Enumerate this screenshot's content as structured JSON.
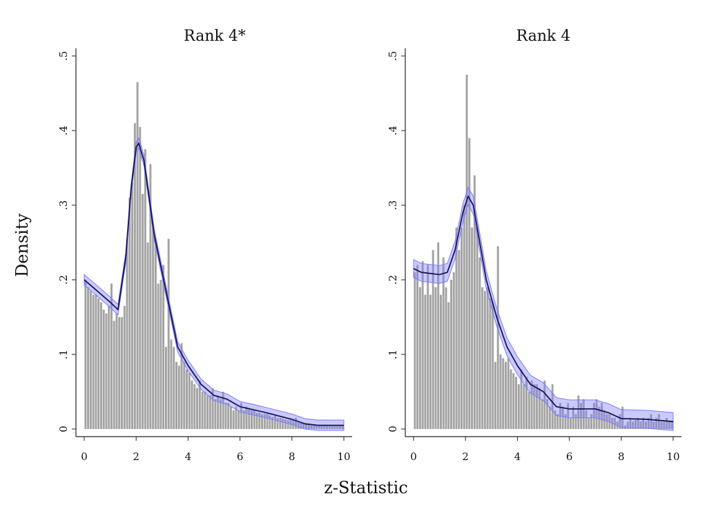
{
  "chart_data": {
    "type": "bar",
    "ylabel": "Density",
    "xlabel": "z-Statistic",
    "colors": {
      "bars": "#a3a3a3",
      "curve": "#1a1550",
      "band": "#7b7bff"
    },
    "xticks": [
      "0",
      "2",
      "4",
      "6",
      "8",
      "10"
    ],
    "xtick_values": [
      0,
      2,
      4,
      6,
      8,
      10
    ],
    "yticks": [
      "0",
      ".1",
      ".2",
      ".3",
      ".4",
      ".5"
    ],
    "ytick_values": [
      0,
      0.1,
      0.2,
      0.3,
      0.4,
      0.5
    ],
    "xlim": [
      0,
      10
    ],
    "ylim": [
      0,
      0.5
    ],
    "bin_width": 0.1,
    "panels": [
      {
        "title": "Rank 4*",
        "histogram": [
          0.2,
          0.19,
          0.185,
          0.18,
          0.18,
          0.175,
          0.17,
          0.16,
          0.155,
          0.165,
          0.195,
          0.145,
          0.155,
          0.15,
          0.15,
          0.165,
          0.255,
          0.31,
          0.33,
          0.41,
          0.465,
          0.405,
          0.315,
          0.375,
          0.25,
          0.355,
          0.275,
          0.255,
          0.195,
          0.2,
          0.22,
          0.11,
          0.255,
          0.12,
          0.11,
          0.09,
          0.085,
          0.115,
          0.09,
          0.08,
          0.075,
          0.065,
          0.06,
          0.055,
          0.065,
          0.05,
          0.05,
          0.045,
          0.045,
          0.055,
          0.04,
          0.045,
          0.04,
          0.05,
          0.035,
          0.035,
          0.03,
          0.025,
          0.03,
          0.025,
          0.035,
          0.025,
          0.03,
          0.028,
          0.025,
          0.025,
          0.022,
          0.022,
          0.02,
          0.02,
          0.02,
          0.018,
          0.016,
          0.018,
          0.015,
          0.015,
          0.014,
          0.013,
          0.012,
          0.012,
          0.012,
          0.015,
          0.01,
          0.008,
          0.008,
          0.006,
          0.006,
          0.005,
          0.006,
          0.005,
          0.005,
          0.005,
          0.006,
          0.005,
          0.005,
          0.005,
          0.005,
          0.004,
          0.005,
          0.005
        ],
        "density_curve": {
          "x": [
            0,
            0.5,
            1,
            1.3,
            1.6,
            1.8,
            2.0,
            2.1,
            2.3,
            2.5,
            2.7,
            3.0,
            3.3,
            3.6,
            4.0,
            4.5,
            5.0,
            5.5,
            6.0,
            7.0,
            8.0,
            8.5,
            9.0,
            10.0
          ],
          "y": [
            0.2,
            0.185,
            0.17,
            0.16,
            0.23,
            0.32,
            0.378,
            0.383,
            0.36,
            0.31,
            0.26,
            0.21,
            0.16,
            0.11,
            0.085,
            0.06,
            0.045,
            0.04,
            0.03,
            0.022,
            0.013,
            0.007,
            0.005,
            0.005
          ],
          "ci_halfwidth": 0.007
        }
      },
      {
        "title": "Rank 4",
        "histogram": [
          0.21,
          0.22,
          0.19,
          0.225,
          0.18,
          0.22,
          0.18,
          0.24,
          0.19,
          0.25,
          0.18,
          0.23,
          0.19,
          0.17,
          0.2,
          0.21,
          0.27,
          0.24,
          0.27,
          0.3,
          0.475,
          0.39,
          0.27,
          0.34,
          0.27,
          0.23,
          0.19,
          0.185,
          0.19,
          0.175,
          0.17,
          0.09,
          0.245,
          0.1,
          0.095,
          0.09,
          0.095,
          0.08,
          0.075,
          0.07,
          0.06,
          0.08,
          0.06,
          0.07,
          0.05,
          0.065,
          0.06,
          0.06,
          0.055,
          0.04,
          0.065,
          0.04,
          0.03,
          0.06,
          0.025,
          0.02,
          0.035,
          0.03,
          0.02,
          0.035,
          0.015,
          0.03,
          0.02,
          0.045,
          0.035,
          0.04,
          0.025,
          0.015,
          0.02,
          0.035,
          0.04,
          0.03,
          0.035,
          0.025,
          0.02,
          0.02,
          0.015,
          0.015,
          0.01,
          0.02,
          0.03,
          0.005,
          0.01,
          0.015,
          0.01,
          0.012,
          0.015,
          0.01,
          0.015,
          0.01,
          0.015,
          0.02,
          0.01,
          0.015,
          0.02,
          0.01,
          0.01,
          0.015,
          0.01,
          0.01
        ],
        "density_curve": {
          "x": [
            0,
            0.3,
            1.0,
            1.3,
            1.6,
            1.9,
            2.1,
            2.3,
            2.5,
            2.8,
            3.2,
            3.6,
            4.0,
            4.5,
            5.0,
            5.5,
            6.0,
            7.0,
            7.5,
            8.0,
            9.0,
            10.0
          ],
          "y": [
            0.215,
            0.21,
            0.207,
            0.21,
            0.24,
            0.29,
            0.312,
            0.3,
            0.26,
            0.2,
            0.15,
            0.11,
            0.085,
            0.06,
            0.05,
            0.03,
            0.027,
            0.027,
            0.022,
            0.014,
            0.013,
            0.01
          ],
          "ci_halfwidth": 0.012
        }
      }
    ]
  }
}
